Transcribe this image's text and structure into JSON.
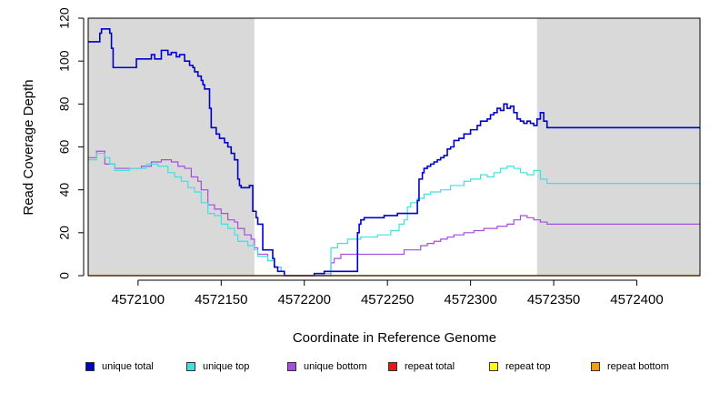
{
  "chart_data": {
    "type": "line",
    "title": "",
    "xlabel": "Coordinate in Reference Genome",
    "ylabel": "Read Coverage Depth",
    "xlim": [
      4572070,
      4572438
    ],
    "ylim": [
      0,
      120
    ],
    "x_ticks": [
      4572100,
      4572150,
      4572200,
      4572250,
      4572300,
      4572350,
      4572400
    ],
    "y_ticks": [
      0,
      20,
      40,
      60,
      80,
      100,
      120
    ],
    "shaded_regions": [
      {
        "x_start": 4572070,
        "x_end": 4572170,
        "color": "#d9d9d9"
      },
      {
        "x_start": 4572340,
        "x_end": 4572438,
        "color": "#d9d9d9"
      }
    ],
    "series": [
      {
        "name": "unique total",
        "color": "#0000cc",
        "step": true,
        "points": [
          [
            4572070,
            109
          ],
          [
            4572076,
            109
          ],
          [
            4572077,
            113
          ],
          [
            4572078,
            115
          ],
          [
            4572083,
            113
          ],
          [
            4572084,
            106
          ],
          [
            4572085,
            97
          ],
          [
            4572099,
            101
          ],
          [
            4572107,
            101
          ],
          [
            4572108,
            103
          ],
          [
            4572110,
            101
          ],
          [
            4572114,
            105
          ],
          [
            4572117,
            105
          ],
          [
            4572118,
            103
          ],
          [
            4572120,
            104
          ],
          [
            4572123,
            102
          ],
          [
            4572125,
            103
          ],
          [
            4572128,
            100
          ],
          [
            4572131,
            98
          ],
          [
            4572133,
            97
          ],
          [
            4572134,
            95
          ],
          [
            4572136,
            93
          ],
          [
            4572138,
            91
          ],
          [
            4572139,
            89
          ],
          [
            4572140,
            87
          ],
          [
            4572143,
            78
          ],
          [
            4572144,
            69
          ],
          [
            4572147,
            66
          ],
          [
            4572149,
            64
          ],
          [
            4572152,
            62
          ],
          [
            4572154,
            60
          ],
          [
            4572156,
            57
          ],
          [
            4572158,
            54
          ],
          [
            4572160,
            45
          ],
          [
            4572161,
            42
          ],
          [
            4572162,
            41
          ],
          [
            4572167,
            42
          ],
          [
            4572169,
            30
          ],
          [
            4572171,
            27
          ],
          [
            4572172,
            24
          ],
          [
            4572175,
            12
          ],
          [
            4572180,
            12
          ],
          [
            4572181,
            8
          ],
          [
            4572182,
            4
          ],
          [
            4572184,
            2
          ],
          [
            4572188,
            0
          ],
          [
            4572206,
            1
          ],
          [
            4572212,
            2
          ],
          [
            4572232,
            20
          ],
          [
            4572233,
            24
          ],
          [
            4572234,
            26
          ],
          [
            4572236,
            27
          ],
          [
            4572248,
            28
          ],
          [
            4572256,
            29
          ],
          [
            4572260,
            29
          ],
          [
            4572268,
            35
          ],
          [
            4572269,
            45
          ],
          [
            4572271,
            48
          ],
          [
            4572272,
            50
          ],
          [
            4572274,
            51
          ],
          [
            4572276,
            52
          ],
          [
            4572278,
            53
          ],
          [
            4572280,
            54
          ],
          [
            4572282,
            55
          ],
          [
            4572284,
            56
          ],
          [
            4572286,
            59
          ],
          [
            4572288,
            60
          ],
          [
            4572290,
            63
          ],
          [
            4572293,
            64
          ],
          [
            4572296,
            66
          ],
          [
            4572300,
            68
          ],
          [
            4572304,
            70
          ],
          [
            4572306,
            72
          ],
          [
            4572310,
            73
          ],
          [
            4572312,
            75
          ],
          [
            4572314,
            76
          ],
          [
            4572316,
            78
          ],
          [
            4572318,
            77
          ],
          [
            4572320,
            80
          ],
          [
            4572322,
            78
          ],
          [
            4572324,
            79
          ],
          [
            4572326,
            76
          ],
          [
            4572328,
            73
          ],
          [
            4572330,
            72
          ],
          [
            4572332,
            71
          ],
          [
            4572334,
            72
          ],
          [
            4572336,
            71
          ],
          [
            4572338,
            70
          ],
          [
            4572340,
            73
          ],
          [
            4572342,
            76
          ],
          [
            4572344,
            72
          ],
          [
            4572346,
            69
          ],
          [
            4572352,
            69
          ]
        ]
      },
      {
        "name": "unique top",
        "color": "#40e0e0",
        "step": true,
        "points": [
          [
            4572070,
            54
          ],
          [
            4572075,
            57
          ],
          [
            4572080,
            55
          ],
          [
            4572083,
            52
          ],
          [
            4572086,
            49
          ],
          [
            4572095,
            50
          ],
          [
            4572105,
            52
          ],
          [
            4572112,
            51
          ],
          [
            4572118,
            48
          ],
          [
            4572122,
            46
          ],
          [
            4572126,
            44
          ],
          [
            4572130,
            41
          ],
          [
            4572134,
            39
          ],
          [
            4572138,
            34
          ],
          [
            4572142,
            29
          ],
          [
            4572146,
            28
          ],
          [
            4572150,
            24
          ],
          [
            4572154,
            22
          ],
          [
            4572158,
            19
          ],
          [
            4572160,
            16
          ],
          [
            4572166,
            14
          ],
          [
            4572170,
            12
          ],
          [
            4572172,
            9
          ],
          [
            4572178,
            7
          ],
          [
            4572182,
            4
          ],
          [
            4572186,
            2
          ],
          [
            4572188,
            0
          ],
          [
            4572212,
            1
          ],
          [
            4572216,
            13
          ],
          [
            4572220,
            15
          ],
          [
            4572226,
            17
          ],
          [
            4572234,
            18
          ],
          [
            4572244,
            19
          ],
          [
            4572252,
            21
          ],
          [
            4572257,
            24
          ],
          [
            4572260,
            26
          ],
          [
            4572262,
            32
          ],
          [
            4572264,
            34
          ],
          [
            4572268,
            36
          ],
          [
            4572272,
            38
          ],
          [
            4572276,
            39
          ],
          [
            4572282,
            40
          ],
          [
            4572288,
            42
          ],
          [
            4572296,
            44
          ],
          [
            4572300,
            45
          ],
          [
            4572306,
            47
          ],
          [
            4572310,
            46
          ],
          [
            4572314,
            48
          ],
          [
            4572318,
            50
          ],
          [
            4572322,
            51
          ],
          [
            4572326,
            50
          ],
          [
            4572330,
            48
          ],
          [
            4572334,
            47
          ],
          [
            4572338,
            49
          ],
          [
            4572342,
            45
          ],
          [
            4572346,
            43
          ],
          [
            4572352,
            43
          ]
        ]
      },
      {
        "name": "unique bottom",
        "color": "#a64ce0",
        "step": true,
        "points": [
          [
            4572070,
            55
          ],
          [
            4572075,
            58
          ],
          [
            4572080,
            52
          ],
          [
            4572086,
            50
          ],
          [
            4572095,
            50
          ],
          [
            4572102,
            51
          ],
          [
            4572108,
            53
          ],
          [
            4572114,
            54
          ],
          [
            4572120,
            53
          ],
          [
            4572124,
            51
          ],
          [
            4572128,
            50
          ],
          [
            4572132,
            46
          ],
          [
            4572136,
            44
          ],
          [
            4572138,
            40
          ],
          [
            4572142,
            33
          ],
          [
            4572146,
            31
          ],
          [
            4572150,
            29
          ],
          [
            4572154,
            26
          ],
          [
            4572158,
            25
          ],
          [
            4572160,
            22
          ],
          [
            4572164,
            19
          ],
          [
            4572168,
            17
          ],
          [
            4572170,
            13
          ],
          [
            4572172,
            10
          ],
          [
            4572178,
            7
          ],
          [
            4572182,
            4
          ],
          [
            4572186,
            2
          ],
          [
            4572188,
            0
          ],
          [
            4572216,
            6
          ],
          [
            4572218,
            8
          ],
          [
            4572222,
            10
          ],
          [
            4572260,
            12
          ],
          [
            4572270,
            14
          ],
          [
            4572274,
            15
          ],
          [
            4572278,
            16
          ],
          [
            4572282,
            17
          ],
          [
            4572286,
            18
          ],
          [
            4572290,
            19
          ],
          [
            4572296,
            20
          ],
          [
            4572302,
            21
          ],
          [
            4572308,
            22
          ],
          [
            4572316,
            23
          ],
          [
            4572322,
            24
          ],
          [
            4572326,
            26
          ],
          [
            4572330,
            28
          ],
          [
            4572334,
            27
          ],
          [
            4572338,
            26
          ],
          [
            4572342,
            25
          ],
          [
            4572346,
            24
          ],
          [
            4572352,
            24
          ]
        ]
      },
      {
        "name": "repeat total",
        "color": "#e31a1c",
        "step": true,
        "points": [
          [
            4572070,
            0
          ],
          [
            4572438,
            0
          ]
        ]
      },
      {
        "name": "repeat top",
        "color": "#ffff00",
        "step": true,
        "points": [
          [
            4572070,
            0
          ],
          [
            4572438,
            0
          ]
        ]
      },
      {
        "name": "repeat bottom",
        "color": "#f0a000",
        "step": true,
        "points": [
          [
            4572070,
            0
          ],
          [
            4572438,
            0
          ]
        ]
      }
    ],
    "legend_position": "bottom"
  }
}
